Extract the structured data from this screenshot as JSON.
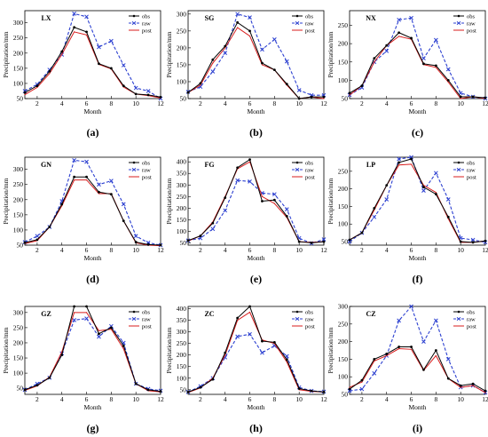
{
  "legend_labels": [
    "obs",
    "raw",
    "post"
  ],
  "colors": {
    "obs": "#000000",
    "raw": "#2b3fd0",
    "post": "#d81c1c"
  },
  "chart_data": [
    {
      "type": "line",
      "caption": "(a)",
      "title": "LX",
      "xlabel": "Month",
      "ylabel": "Precipitation/mm",
      "x": [
        1,
        2,
        3,
        4,
        5,
        6,
        7,
        8,
        9,
        10,
        11,
        12
      ],
      "xticks": [
        2,
        4,
        6,
        8,
        10,
        12
      ],
      "xlim": [
        1,
        12
      ],
      "ylim": [
        50,
        340
      ],
      "yticks": [
        50,
        100,
        150,
        200,
        250,
        300
      ],
      "series": [
        {
          "name": "obs",
          "values": [
            70,
            92,
            140,
            205,
            285,
            270,
            165,
            150,
            92,
            65,
            62,
            55
          ]
        },
        {
          "name": "raw",
          "values": [
            75,
            97,
            145,
            195,
            330,
            320,
            220,
            240,
            160,
            85,
            75,
            50
          ]
        },
        {
          "name": "post",
          "values": [
            63,
            87,
            133,
            196,
            270,
            260,
            163,
            148,
            88,
            65,
            60,
            52
          ]
        }
      ]
    },
    {
      "type": "line",
      "caption": "(b)",
      "title": "SG",
      "xlabel": "Month",
      "ylabel": "Precipitation/mm",
      "x": [
        1,
        2,
        3,
        4,
        5,
        6,
        7,
        8,
        9,
        10,
        11,
        12
      ],
      "xticks": [
        2,
        4,
        6,
        8,
        10,
        12
      ],
      "xlim": [
        1,
        12
      ],
      "ylim": [
        50,
        310
      ],
      "yticks": [
        50,
        100,
        150,
        200,
        250,
        300
      ],
      "series": [
        {
          "name": "obs",
          "values": [
            68,
            95,
            165,
            205,
            275,
            250,
            155,
            135,
            93,
            50,
            55,
            55
          ]
        },
        {
          "name": "raw",
          "values": [
            70,
            85,
            130,
            185,
            300,
            290,
            195,
            225,
            160,
            75,
            60,
            60
          ]
        },
        {
          "name": "post",
          "values": [
            68,
            90,
            155,
            200,
            260,
            235,
            150,
            135,
            90,
            50,
            55,
            50
          ]
        }
      ]
    },
    {
      "type": "line",
      "caption": "(c)",
      "title": "NX",
      "xlabel": "Month",
      "ylabel": "Precipitation/mm",
      "x": [
        1,
        2,
        3,
        4,
        5,
        6,
        7,
        8,
        9,
        10,
        11,
        12
      ],
      "xticks": [
        2,
        4,
        6,
        8,
        10,
        12
      ],
      "xlim": [
        1,
        12
      ],
      "ylim": [
        50,
        290
      ],
      "yticks": [
        50,
        100,
        150,
        200,
        250
      ],
      "series": [
        {
          "name": "obs",
          "values": [
            65,
            85,
            160,
            195,
            230,
            215,
            145,
            140,
            100,
            55,
            55,
            52
          ]
        },
        {
          "name": "raw",
          "values": [
            60,
            80,
            150,
            180,
            265,
            270,
            160,
            210,
            130,
            65,
            55,
            50
          ]
        },
        {
          "name": "post",
          "values": [
            60,
            85,
            150,
            195,
            220,
            212,
            143,
            135,
            95,
            50,
            55,
            50
          ]
        }
      ]
    },
    {
      "type": "line",
      "caption": "(d)",
      "title": "GN",
      "xlabel": "Month",
      "ylabel": "Precipitation/mm",
      "x": [
        1,
        2,
        3,
        4,
        5,
        6,
        7,
        8,
        9,
        10,
        11,
        12
      ],
      "xticks": [
        2,
        4,
        6,
        8,
        10,
        12
      ],
      "xlim": [
        1,
        12
      ],
      "ylim": [
        50,
        340
      ],
      "yticks": [
        50,
        100,
        150,
        200,
        250,
        300
      ],
      "series": [
        {
          "name": "obs",
          "values": [
            58,
            68,
            110,
            185,
            275,
            275,
            225,
            218,
            130,
            60,
            52,
            50
          ]
        },
        {
          "name": "raw",
          "values": [
            60,
            80,
            110,
            195,
            330,
            325,
            250,
            262,
            185,
            80,
            58,
            50
          ]
        },
        {
          "name": "post",
          "values": [
            55,
            65,
            110,
            180,
            265,
            265,
            220,
            220,
            130,
            58,
            50,
            48
          ]
        }
      ]
    },
    {
      "type": "line",
      "caption": "(e)",
      "title": "FG",
      "xlabel": "Month",
      "ylabel": "Precipitation/mm",
      "x": [
        1,
        2,
        3,
        4,
        5,
        6,
        7,
        8,
        9,
        10,
        11,
        12
      ],
      "xticks": [
        2,
        4,
        6,
        8,
        10,
        12
      ],
      "xlim": [
        1,
        12
      ],
      "ylim": [
        40,
        420
      ],
      "yticks": [
        50,
        100,
        150,
        200,
        250,
        300,
        350,
        400
      ],
      "series": [
        {
          "name": "obs",
          "values": [
            60,
            80,
            135,
            245,
            375,
            410,
            230,
            235,
            165,
            55,
            50,
            55
          ]
        },
        {
          "name": "raw",
          "values": [
            60,
            70,
            110,
            190,
            320,
            315,
            265,
            260,
            195,
            70,
            48,
            65
          ]
        },
        {
          "name": "post",
          "values": [
            58,
            80,
            140,
            250,
            370,
            400,
            250,
            220,
            160,
            55,
            52,
            55
          ]
        }
      ]
    },
    {
      "type": "line",
      "caption": "(f)",
      "title": "LP",
      "xlabel": "Month",
      "ylabel": "Precipitation/mm",
      "x": [
        1,
        2,
        3,
        4,
        5,
        6,
        7,
        8,
        9,
        10,
        11,
        12
      ],
      "xticks": [
        2,
        4,
        6,
        8,
        10,
        12
      ],
      "xlim": [
        1,
        12
      ],
      "ylim": [
        40,
        290
      ],
      "yticks": [
        50,
        100,
        150,
        200,
        250
      ],
      "series": [
        {
          "name": "obs",
          "values": [
            55,
            75,
            145,
            210,
            275,
            285,
            205,
            185,
            120,
            50,
            48,
            52
          ]
        },
        {
          "name": "raw",
          "values": [
            50,
            75,
            120,
            170,
            285,
            290,
            195,
            245,
            170,
            60,
            55,
            48
          ]
        },
        {
          "name": "post",
          "values": [
            55,
            75,
            140,
            210,
            268,
            270,
            210,
            190,
            115,
            48,
            48,
            52
          ]
        }
      ]
    },
    {
      "type": "line",
      "caption": "(g)",
      "title": "GZ",
      "xlabel": "Month",
      "ylabel": "Precipitation/mm",
      "x": [
        1,
        2,
        3,
        4,
        5,
        6,
        7,
        8,
        9,
        10,
        11,
        12
      ],
      "xticks": [
        2,
        4,
        6,
        8,
        10,
        12
      ],
      "xlim": [
        1,
        12
      ],
      "ylim": [
        30,
        320
      ],
      "yticks": [
        50,
        100,
        150,
        200,
        250,
        300
      ],
      "series": [
        {
          "name": "obs",
          "values": [
            45,
            60,
            85,
            160,
            320,
            320,
            230,
            250,
            190,
            65,
            45,
            40
          ]
        },
        {
          "name": "raw",
          "values": [
            45,
            65,
            85,
            165,
            275,
            280,
            220,
            255,
            200,
            65,
            48,
            42
          ]
        },
        {
          "name": "post",
          "values": [
            43,
            58,
            87,
            170,
            300,
            300,
            240,
            245,
            180,
            65,
            42,
            38
          ]
        }
      ]
    },
    {
      "type": "line",
      "caption": "(h)",
      "title": "ZC",
      "xlabel": "Month",
      "ylabel": "Precipitation/mm",
      "x": [
        1,
        2,
        3,
        4,
        5,
        6,
        7,
        8,
        9,
        10,
        11,
        12
      ],
      "xticks": [
        2,
        4,
        6,
        8,
        10,
        12
      ],
      "xlim": [
        1,
        12
      ],
      "ylim": [
        30,
        410
      ],
      "yticks": [
        50,
        100,
        150,
        200,
        250,
        300,
        350,
        400
      ],
      "series": [
        {
          "name": "obs",
          "values": [
            40,
            60,
            95,
            210,
            360,
            410,
            260,
            255,
            180,
            55,
            45,
            40
          ]
        },
        {
          "name": "raw",
          "values": [
            40,
            65,
            100,
            190,
            280,
            290,
            210,
            240,
            195,
            60,
            45,
            42
          ]
        },
        {
          "name": "post",
          "values": [
            38,
            58,
            100,
            200,
            350,
            385,
            265,
            250,
            170,
            50,
            43,
            40
          ]
        }
      ]
    },
    {
      "type": "line",
      "caption": "(i)",
      "title": "CZ",
      "xlabel": "Month",
      "ylabel": "Precipitation/mm",
      "x": [
        1,
        2,
        3,
        4,
        5,
        6,
        7,
        8,
        9,
        10,
        11,
        12
      ],
      "xticks": [
        2,
        4,
        6,
        8,
        10,
        12
      ],
      "xlim": [
        1,
        12
      ],
      "ylim": [
        50,
        300
      ],
      "yticks": [
        50,
        100,
        150,
        200,
        250,
        300
      ],
      "series": [
        {
          "name": "obs",
          "values": [
            65,
            90,
            150,
            165,
            185,
            185,
            120,
            175,
            95,
            75,
            80,
            60
          ]
        },
        {
          "name": "raw",
          "values": [
            60,
            65,
            110,
            160,
            260,
            300,
            200,
            260,
            150,
            70,
            75,
            55
          ]
        },
        {
          "name": "post",
          "values": [
            70,
            85,
            145,
            160,
            180,
            178,
            118,
            160,
            95,
            70,
            75,
            55
          ]
        }
      ]
    }
  ]
}
